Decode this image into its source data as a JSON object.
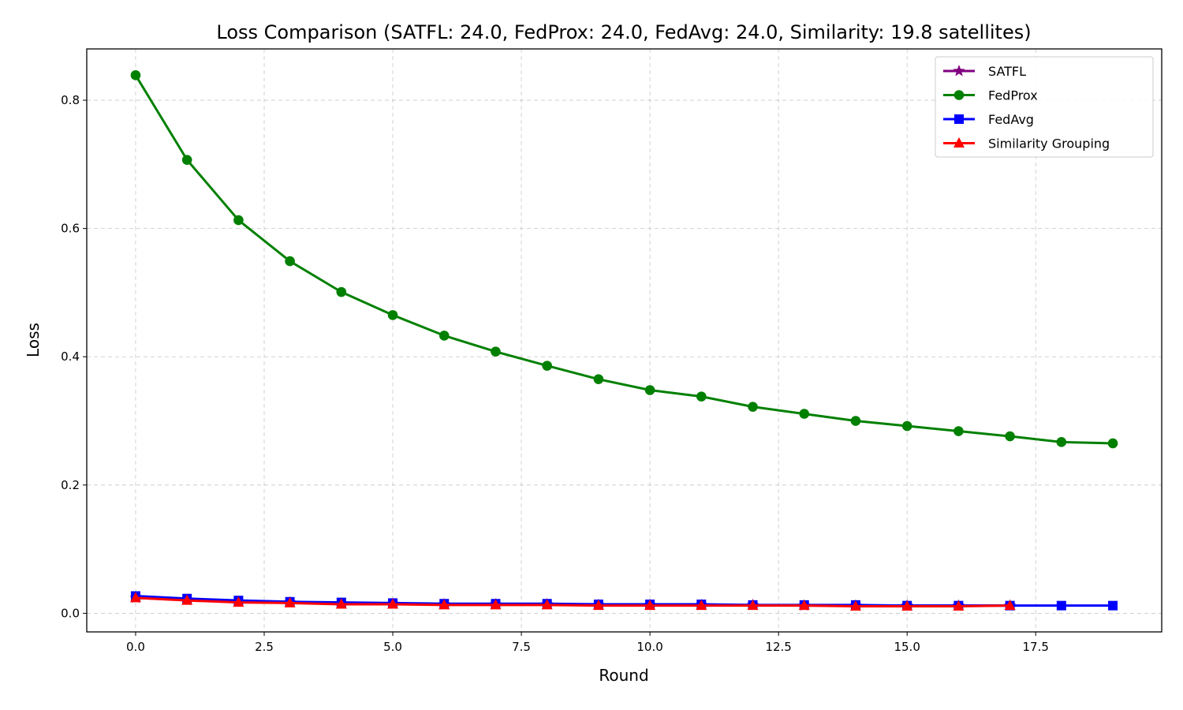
{
  "chart_data": {
    "type": "line",
    "title": "Loss Comparison (SATFL: 24.0, FedProx: 24.0, FedAvg: 24.0, Similarity: 19.8 satellites)",
    "xlabel": "Round",
    "ylabel": "Loss",
    "xlim": [
      -0.95,
      19.95
    ],
    "ylim": [
      -0.029,
      0.88
    ],
    "xticks": [
      0.0,
      2.5,
      5.0,
      7.5,
      10.0,
      12.5,
      15.0,
      17.5
    ],
    "xtick_labels": [
      "0.0",
      "2.5",
      "5.0",
      "7.5",
      "10.0",
      "12.5",
      "15.0",
      "17.5"
    ],
    "yticks": [
      0.0,
      0.2,
      0.4,
      0.6,
      0.8
    ],
    "ytick_labels": [
      "0.0",
      "0.2",
      "0.4",
      "0.6",
      "0.8"
    ],
    "grid": true,
    "legend_position": "top-right",
    "series": [
      {
        "name": "SATFL",
        "color": "#800080",
        "marker": "star",
        "x": [
          0,
          1,
          2,
          3,
          4,
          5,
          6,
          7,
          8,
          9,
          10,
          11,
          12,
          13,
          14,
          15,
          16,
          17
        ],
        "values": [
          0.024,
          0.021,
          0.018,
          0.017,
          0.015,
          0.015,
          0.014,
          0.014,
          0.014,
          0.013,
          0.013,
          0.013,
          0.013,
          0.012,
          0.012,
          0.012,
          0.012,
          0.012
        ]
      },
      {
        "name": "FedProx",
        "color": "#008000",
        "marker": "circle",
        "x": [
          0,
          1,
          2,
          3,
          4,
          5,
          6,
          7,
          8,
          9,
          10,
          11,
          12,
          13,
          14,
          15,
          16,
          17,
          18,
          19
        ],
        "values": [
          0.839,
          0.707,
          0.613,
          0.549,
          0.501,
          0.465,
          0.433,
          0.408,
          0.386,
          0.365,
          0.348,
          0.338,
          0.322,
          0.311,
          0.3,
          0.292,
          0.284,
          0.276,
          0.267,
          0.265
        ]
      },
      {
        "name": "FedAvg",
        "color": "#0000ff",
        "marker": "square",
        "x": [
          0,
          1,
          2,
          3,
          4,
          5,
          6,
          7,
          8,
          9,
          10,
          11,
          12,
          13,
          14,
          15,
          16,
          17,
          18,
          19
        ],
        "values": [
          0.027,
          0.023,
          0.02,
          0.018,
          0.017,
          0.016,
          0.015,
          0.015,
          0.015,
          0.014,
          0.014,
          0.014,
          0.013,
          0.013,
          0.013,
          0.012,
          0.012,
          0.012,
          0.012,
          0.012
        ]
      },
      {
        "name": "Similarity Grouping",
        "color": "#ff0000",
        "marker": "triangle",
        "x": [
          0,
          1,
          2,
          3,
          4,
          5,
          6,
          7,
          8,
          9,
          10,
          11,
          12,
          13,
          14,
          15,
          16,
          17
        ],
        "values": [
          0.024,
          0.02,
          0.017,
          0.016,
          0.014,
          0.014,
          0.013,
          0.013,
          0.013,
          0.012,
          0.012,
          0.012,
          0.012,
          0.012,
          0.011,
          0.011,
          0.011,
          0.012
        ]
      }
    ]
  }
}
